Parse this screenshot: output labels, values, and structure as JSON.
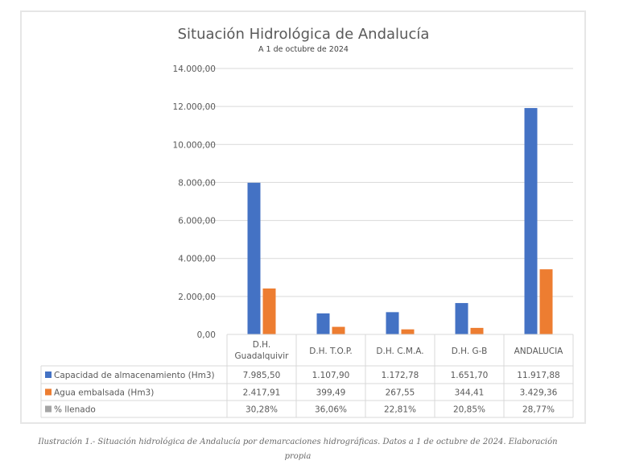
{
  "chart_data": {
    "type": "bar",
    "title": "Situación Hidrológica de Andalucía",
    "subtitle": "A 1 de octubre de 2024",
    "categories": [
      "D.H. Guadalquivir",
      "D.H. T.O.P.",
      "D.H. C.M.A.",
      "D.H. G-B",
      "ANDALUCIA"
    ],
    "category_lines": [
      [
        "D.H.",
        "Guadalquivir"
      ],
      [
        "D.H. T.O.P."
      ],
      [
        "D.H. C.M.A."
      ],
      [
        "D.H. G-B"
      ],
      [
        "ANDALUCIA"
      ]
    ],
    "ylim": [
      0,
      14000
    ],
    "yticks": [
      0,
      2000,
      4000,
      6000,
      8000,
      10000,
      12000,
      14000
    ],
    "ytick_labels": [
      "0,00",
      "2.000,00",
      "4.000,00",
      "6.000,00",
      "8.000,00",
      "10.000,00",
      "12.000,00",
      "14.000,00"
    ],
    "grid": true,
    "legend_position": "data-table",
    "series": [
      {
        "name": "Capacidad de almacenamiento (Hm3)",
        "color": "#4472c4",
        "plotted": true,
        "values": [
          7985.5,
          1107.9,
          1172.78,
          1651.7,
          11917.88
        ],
        "labels": [
          "7.985,50",
          "1.107,90",
          "1.172,78",
          "1.651,70",
          "11.917,88"
        ]
      },
      {
        "name": "Agua embalsada (Hm3)",
        "color": "#ed7d31",
        "plotted": true,
        "values": [
          2417.91,
          399.49,
          267.55,
          344.41,
          3429.36
        ],
        "labels": [
          "2.417,91",
          "399,49",
          "267,55",
          "344,41",
          "3.429,36"
        ]
      },
      {
        "name": "% llenado",
        "color": "#a5a5a5",
        "plotted": false,
        "values": [
          30.28,
          36.06,
          22.81,
          20.85,
          28.77
        ],
        "labels": [
          "30,28%",
          "36,06%",
          "22,81%",
          "20,85%",
          "28,77%"
        ]
      }
    ]
  },
  "caption": {
    "line1": "Ilustración 1.- Situación hidrológica de Andalucía por demarcaciones hidrográficas. Datos a 1 de octubre de 2024. Elaboración",
    "line2": "propia"
  }
}
